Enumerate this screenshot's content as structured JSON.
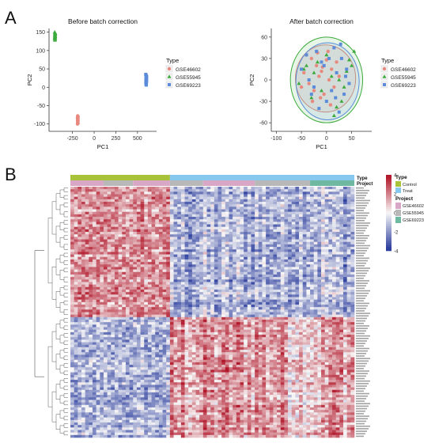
{
  "panels": {
    "a": "A",
    "b": "B"
  },
  "colors": {
    "gse46602": "#E8897F",
    "gse55945": "#3DAA3D",
    "gse69223": "#5B8BD9",
    "type_control": "#A8C33A",
    "type_treat": "#86C8EE",
    "proj_gse46602": "#D9A7C6",
    "proj_gse55945": "#B8B8B8",
    "proj_gse69223": "#6FB8A1",
    "heat_high": "#B2182B",
    "heat_mid": "#F7F7F7",
    "heat_low": "#2C3E9E"
  },
  "chart_data": [
    {
      "type": "scatter",
      "title": "Before batch correction",
      "xlabel": "PC1",
      "ylabel": "PC2",
      "xlim": [
        -520,
        720
      ],
      "ylim": [
        -120,
        160
      ],
      "xticks": [
        -250,
        0,
        250,
        500
      ],
      "yticks": [
        -100,
        -50,
        0,
        50,
        100,
        150
      ],
      "legend": {
        "title": "Type",
        "position": "right",
        "entries": [
          "GSE46602",
          "GSE55945",
          "GSE69223"
        ]
      },
      "series": [
        {
          "name": "GSE46602",
          "marker": "circle",
          "x": [
            -190,
            -185,
            -188,
            -192,
            -186,
            -189,
            -191,
            -187,
            -190,
            -188,
            -186,
            -192,
            -189,
            -187,
            -191
          ],
          "y": [
            -78,
            -80,
            -82,
            -84,
            -86,
            -88,
            -90,
            -92,
            -94,
            -96,
            -98,
            -100,
            -85,
            -91,
            -83
          ]
        },
        {
          "name": "GSE55945",
          "marker": "triangle",
          "x": [
            -455,
            -450,
            -452,
            -448,
            -454,
            -451,
            -449,
            -453,
            -447,
            -456,
            -450,
            -452,
            -448,
            -451,
            -454,
            -449,
            -450,
            -453
          ],
          "y": [
            150,
            148,
            146,
            144,
            142,
            140,
            138,
            136,
            134,
            132,
            130,
            128,
            145,
            139,
            133,
            147,
            141,
            137
          ]
        },
        {
          "name": "GSE69223",
          "marker": "square",
          "x": [
            595,
            600,
            602,
            598,
            605,
            601,
            597,
            603,
            599,
            604,
            596,
            600,
            602,
            598,
            601,
            605,
            599,
            603,
            597,
            600
          ],
          "y": [
            35,
            32,
            30,
            28,
            26,
            24,
            22,
            20,
            18,
            16,
            14,
            12,
            10,
            8,
            6,
            29,
            23,
            17,
            11,
            25
          ]
        }
      ]
    },
    {
      "type": "scatter",
      "title": "After batch correction",
      "xlabel": "PC1",
      "ylabel": "PC2",
      "xlim": [
        -110,
        90
      ],
      "ylim": [
        -72,
        72
      ],
      "xticks": [
        -100,
        -50,
        0,
        50
      ],
      "yticks": [
        -60,
        -30,
        0,
        30,
        60
      ],
      "legend": {
        "title": "Type",
        "position": "right",
        "entries": [
          "GSE46602",
          "GSE55945",
          "GSE69223"
        ]
      },
      "series": [
        {
          "name": "GSE46602",
          "marker": "circle",
          "x": [
            -40,
            -30,
            -20,
            -10,
            0,
            10,
            -35,
            -25,
            -15,
            -5,
            5,
            15,
            -45,
            -28,
            -12,
            3,
            20,
            -18,
            8,
            -8,
            25,
            -50
          ],
          "y": [
            35,
            30,
            20,
            12,
            28,
            15,
            -5,
            -15,
            5,
            -20,
            0,
            -10,
            10,
            -30,
            -25,
            40,
            25,
            38,
            -35,
            18,
            5,
            -10
          ]
        },
        {
          "name": "GSE55945",
          "marker": "triangle",
          "x": [
            55,
            45,
            40,
            -18,
            -55,
            30,
            -40,
            20,
            -30,
            10,
            -10,
            0,
            35,
            -25,
            50,
            15,
            -45,
            25
          ],
          "y": [
            40,
            28,
            12,
            25,
            -5,
            -30,
            20,
            -38,
            -25,
            5,
            -15,
            35,
            -10,
            10,
            20,
            -50,
            15,
            0
          ]
        },
        {
          "name": "GSE69223",
          "marker": "square",
          "x": [
            -50,
            -40,
            -35,
            -30,
            -20,
            -15,
            -10,
            0,
            5,
            10,
            15,
            20,
            25,
            30,
            35,
            40,
            45,
            -5,
            -25,
            18,
            28,
            38
          ],
          "y": [
            15,
            35,
            0,
            -20,
            40,
            -40,
            25,
            -30,
            30,
            -15,
            45,
            10,
            -45,
            30,
            -20,
            15,
            -5,
            20,
            -10,
            -25,
            50,
            5
          ]
        }
      ],
      "ellipses": [
        {
          "series": "GSE46602",
          "cx": -2,
          "cy": 2,
          "rx": 60,
          "ry": 47
        },
        {
          "series": "GSE55945",
          "cx": 0,
          "cy": 0,
          "rx": 72,
          "ry": 60
        },
        {
          "series": "GSE69223",
          "cx": 2,
          "cy": -2,
          "rx": 63,
          "ry": 54
        }
      ]
    },
    {
      "type": "heatmap",
      "rows": 100,
      "columns": 77,
      "annotations": {
        "Type": [
          {
            "label": "Control",
            "count": 27
          },
          {
            "label": "Treat",
            "count": 50
          }
        ],
        "Project": [
          {
            "label": "GSE46602",
            "count": 9
          },
          {
            "label": "GSE55945",
            "count": 8
          },
          {
            "label": "GSE46602",
            "count": 10
          },
          {
            "label": "GSE55945",
            "count": 9
          },
          {
            "label": "GSE46602",
            "count": 14
          },
          {
            "label": "GSE55945",
            "count": 15
          },
          {
            "label": "GSE69223",
            "count": 12
          }
        ]
      },
      "colorbar": {
        "min": -4,
        "max": 4,
        "ticks": [
          4,
          2,
          0,
          -2,
          -4
        ]
      },
      "legend_titles": {
        "type": "Type",
        "project": "Project"
      },
      "type_entries": [
        "Control",
        "Treat"
      ],
      "project_entries": [
        "GSE46602",
        "GSE55945",
        "GSE69223"
      ],
      "blocks": {
        "up_in_control_rows": 52,
        "down_in_control_rows": 48
      }
    }
  ]
}
